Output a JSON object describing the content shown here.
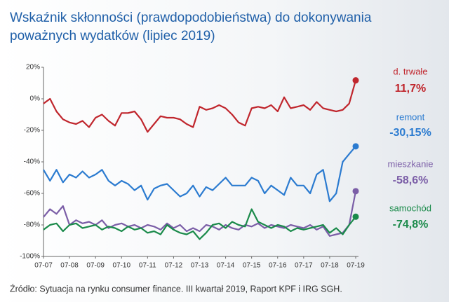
{
  "chart_data": {
    "type": "line",
    "title": "Wskaźnik skłonności (prawdopodobieństwa) do dokonywania",
    "subtitle": "poważnych wydatków (lipiec 2019)",
    "source": "Źródło: Sytuacja na rynku consumer finance. III kwartał 2019, Raport KPF i IRG SGH.",
    "categories": [
      "07-07",
      null,
      null,
      null,
      "07-08",
      null,
      null,
      null,
      "07-09",
      null,
      null,
      null,
      "07-10",
      null,
      null,
      null,
      "07-11",
      null,
      null,
      null,
      "07-12",
      null,
      null,
      null,
      "07-13",
      null,
      null,
      null,
      "07-14",
      null,
      null,
      null,
      "07-15",
      null,
      null,
      null,
      "07-16",
      null,
      null,
      null,
      "07-17",
      null,
      null,
      null,
      "07-18",
      null,
      null,
      null,
      "07-19"
    ],
    "ylim": [
      -100,
      20
    ],
    "yticks": [
      {
        "value": 20,
        "label": "20%"
      },
      {
        "value": 0,
        "label": "0%"
      },
      {
        "value": -20,
        "label": "-20%"
      },
      {
        "value": -40,
        "label": "-40%"
      },
      {
        "value": -60,
        "label": "-60%"
      },
      {
        "value": -80,
        "label": "-80%"
      },
      {
        "value": -100,
        "label": "-100%"
      }
    ],
    "grid": false,
    "series": [
      {
        "name": "d. trwałe",
        "color": "#c0262d",
        "values": [
          -3,
          0,
          -8,
          -13,
          -15,
          -16,
          -14,
          -18,
          -12,
          -10,
          -14,
          -17,
          -9,
          -9,
          -8,
          -13,
          -21,
          -16,
          -11,
          -12,
          -12,
          -13,
          -16,
          -18,
          -5,
          -7,
          -6,
          -4,
          -6,
          -10,
          -15,
          -17,
          -6,
          -5,
          -6,
          -4,
          -8,
          1,
          -6,
          -5,
          -4,
          -7,
          -2,
          -6,
          -7,
          -8,
          -7,
          -3,
          11.7
        ],
        "value_labels": [
          null,
          null,
          null,
          null,
          null,
          null,
          null,
          null,
          null,
          null,
          null,
          null,
          null,
          null,
          null,
          null,
          null,
          null,
          null,
          null,
          null,
          null,
          null,
          null,
          null,
          null,
          null,
          null,
          null,
          null,
          null,
          null,
          null,
          null,
          null,
          null,
          null,
          null,
          null,
          null,
          null,
          null,
          null,
          null,
          null,
          null,
          null,
          null,
          "11,7%"
        ]
      },
      {
        "name": "remont",
        "color": "#2b7bd0",
        "values": [
          -45,
          -52,
          -45,
          -53,
          -48,
          -50,
          -46,
          -50,
          -48,
          -45,
          -52,
          -55,
          -52,
          -54,
          -58,
          -55,
          -64,
          -57,
          -55,
          -54,
          -58,
          -62,
          -60,
          -55,
          -62,
          -56,
          -58,
          -54,
          -50,
          -55,
          -55,
          -55,
          -50,
          -52,
          -60,
          -55,
          -58,
          -61,
          -50,
          -55,
          -55,
          -60,
          -48,
          -45,
          -65,
          -60,
          -40,
          -35,
          -30.15
        ],
        "value_labels": [
          null,
          null,
          null,
          null,
          null,
          null,
          null,
          null,
          null,
          null,
          null,
          null,
          null,
          null,
          null,
          null,
          null,
          null,
          null,
          null,
          null,
          null,
          null,
          null,
          null,
          null,
          null,
          null,
          null,
          null,
          null,
          null,
          null,
          null,
          null,
          null,
          null,
          null,
          null,
          null,
          null,
          null,
          null,
          null,
          null,
          null,
          null,
          null,
          "-30,15%"
        ]
      },
      {
        "name": "mieszkanie",
        "color": "#7b5ea7",
        "values": [
          -75,
          -70,
          -73,
          -68,
          -80,
          -77,
          -79,
          -78,
          -80,
          -77,
          -82,
          -80,
          -79,
          -81,
          -80,
          -82,
          -80,
          -81,
          -83,
          -79,
          -82,
          -80,
          -84,
          -82,
          -84,
          -80,
          -81,
          -83,
          -80,
          -82,
          -83,
          -80,
          -81,
          -79,
          -82,
          -80,
          -81,
          -82,
          -80,
          -81,
          -82,
          -80,
          -83,
          -81,
          -87,
          -86,
          -85,
          -80,
          -58.6
        ],
        "value_labels": [
          null,
          null,
          null,
          null,
          null,
          null,
          null,
          null,
          null,
          null,
          null,
          null,
          null,
          null,
          null,
          null,
          null,
          null,
          null,
          null,
          null,
          null,
          null,
          null,
          null,
          null,
          null,
          null,
          null,
          null,
          null,
          null,
          null,
          null,
          null,
          null,
          null,
          null,
          null,
          null,
          null,
          null,
          null,
          null,
          null,
          null,
          null,
          null,
          "-58,6%"
        ]
      },
      {
        "name": "samochód",
        "color": "#1a8a4a",
        "values": [
          -83,
          -80,
          -79,
          -84,
          -80,
          -79,
          -82,
          -81,
          -80,
          -83,
          -81,
          -82,
          -84,
          -81,
          -83,
          -82,
          -85,
          -84,
          -86,
          -80,
          -83,
          -85,
          -86,
          -84,
          -89,
          -85,
          -80,
          -79,
          -82,
          -78,
          -80,
          -81,
          -70,
          -78,
          -80,
          -82,
          -80,
          -81,
          -84,
          -82,
          -83,
          -82,
          -81,
          -80,
          -85,
          -82,
          -86,
          -80,
          -74.8
        ],
        "value_labels": [
          null,
          null,
          null,
          null,
          null,
          null,
          null,
          null,
          null,
          null,
          null,
          null,
          null,
          null,
          null,
          null,
          null,
          null,
          null,
          null,
          null,
          null,
          null,
          null,
          null,
          null,
          null,
          null,
          null,
          null,
          null,
          null,
          null,
          null,
          null,
          null,
          null,
          null,
          null,
          null,
          null,
          null,
          null,
          null,
          null,
          null,
          null,
          null,
          "-74,8%"
        ]
      }
    ]
  }
}
